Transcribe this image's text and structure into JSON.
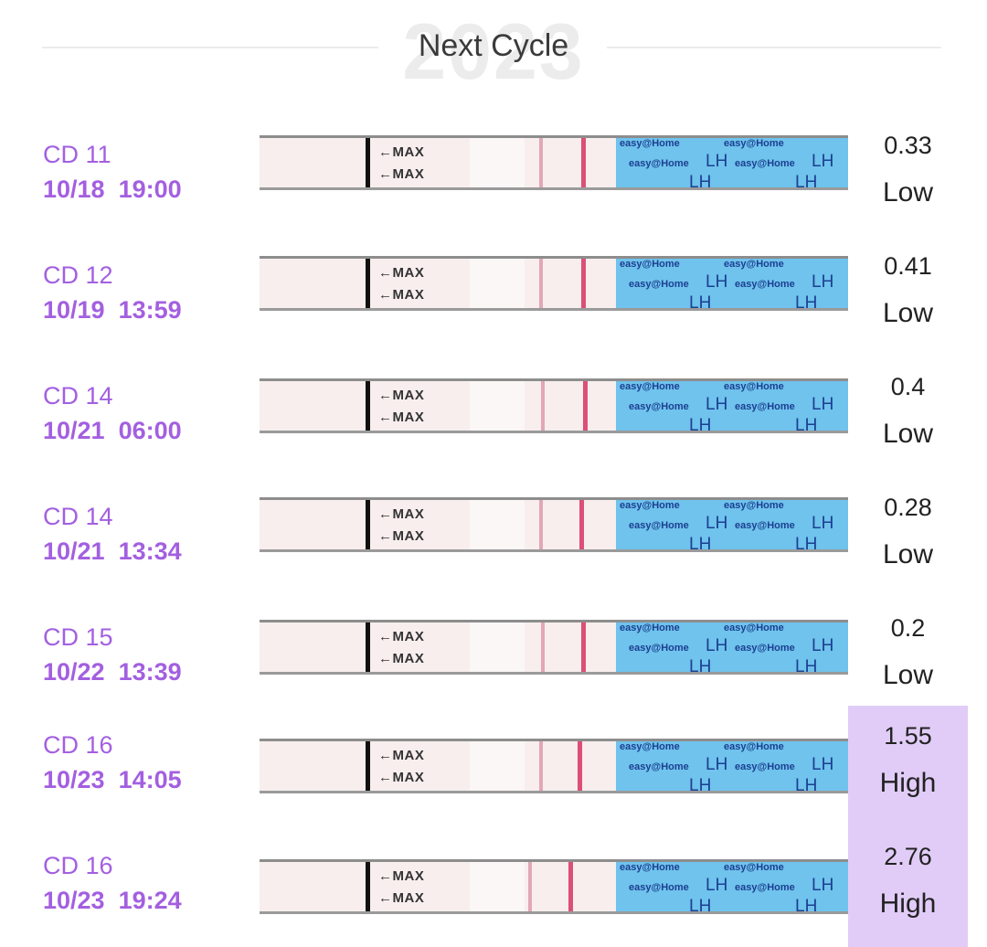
{
  "header": {
    "title": "Next Cycle",
    "year": "2023"
  },
  "strip": {
    "max_label": "←MAX",
    "brand": "easy@Home",
    "test": "LH"
  },
  "colors": {
    "accent": "#a35fe0",
    "high_bg": "#e1ccf7"
  },
  "rows": [
    {
      "cd": "CD 11",
      "date": "10/18",
      "time": "19:00",
      "value": "0.33",
      "level": "Low"
    },
    {
      "cd": "CD 12",
      "date": "10/19",
      "time": "13:59",
      "value": "0.41",
      "level": "Low"
    },
    {
      "cd": "CD 14",
      "date": "10/21",
      "time": "06:00",
      "value": "0.4",
      "level": "Low"
    },
    {
      "cd": "CD 14",
      "date": "10/21",
      "time": "13:34",
      "value": "0.28",
      "level": "Low"
    },
    {
      "cd": "CD 15",
      "date": "10/22",
      "time": "13:39",
      "value": "0.2",
      "level": "Low"
    },
    {
      "cd": "CD 16",
      "date": "10/23",
      "time": "14:05",
      "value": "1.55",
      "level": "High"
    },
    {
      "cd": "CD 16",
      "date": "10/23",
      "time": "19:24",
      "value": "2.76",
      "level": "High"
    }
  ]
}
